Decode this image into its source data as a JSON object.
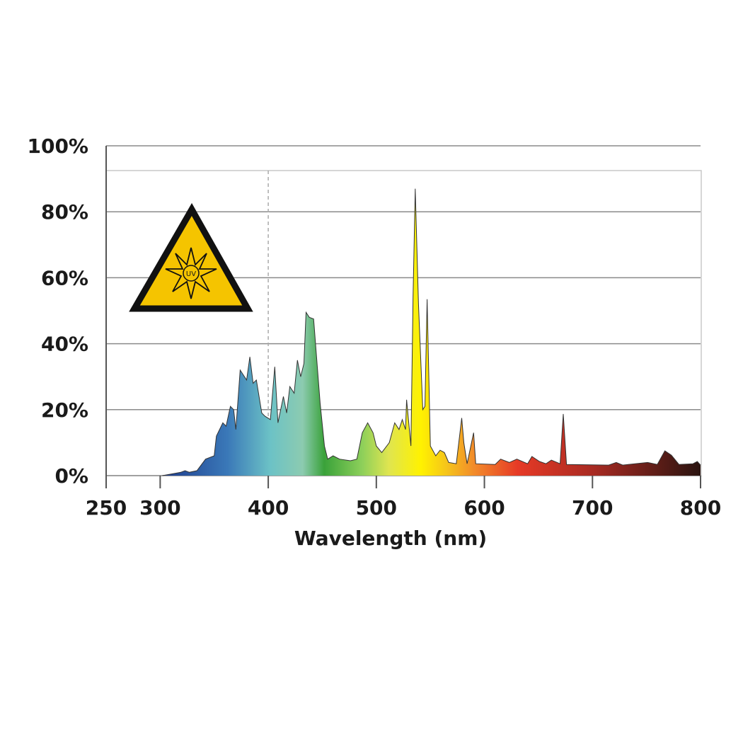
{
  "chart_data": {
    "type": "area",
    "x_label": "Wavelength (nm)",
    "icon_label": "UV",
    "xlim": [
      250,
      800
    ],
    "xticks": [
      250,
      300,
      400,
      500,
      600,
      700,
      800
    ],
    "ylim": [
      0,
      100
    ],
    "yticks": [
      {
        "value": 0,
        "label": "0%"
      },
      {
        "value": 20,
        "label": "20%"
      },
      {
        "value": 40,
        "label": "40%"
      },
      {
        "value": 60,
        "label": "60%"
      },
      {
        "value": 80,
        "label": "80%"
      },
      {
        "value": 100,
        "label": "100%"
      }
    ],
    "grid": true,
    "vline": 400,
    "x": [
      302,
      319,
      323,
      327,
      334,
      342,
      350,
      352,
      358,
      361,
      365,
      368,
      370,
      374,
      380,
      383,
      386,
      389,
      394,
      397,
      402,
      406,
      409,
      414,
      417,
      420,
      424,
      427,
      430,
      433,
      435,
      438,
      442,
      448,
      452,
      455,
      460,
      466,
      476,
      482,
      487,
      492,
      497,
      500,
      505,
      512,
      517,
      521,
      524,
      527,
      528,
      532,
      534,
      536,
      539,
      543,
      545,
      547,
      550,
      555,
      559,
      563,
      567,
      574,
      579,
      581,
      584,
      590,
      592,
      610,
      615,
      623,
      630,
      640,
      644,
      651,
      657,
      662,
      670,
      673,
      676,
      715,
      722,
      728,
      751,
      760,
      767,
      773,
      780,
      793,
      797,
      800
    ],
    "values": [
      0,
      1,
      1.5,
      1,
      1.5,
      5,
      6,
      12,
      16,
      15,
      21,
      20,
      14,
      32,
      29,
      36,
      28,
      29,
      19,
      18,
      17,
      33,
      16,
      24,
      19,
      27,
      25,
      35,
      30,
      34,
      49.5,
      48,
      47.5,
      22,
      9,
      5,
      6,
      5,
      4.5,
      5,
      13,
      16,
      13,
      9,
      7,
      10,
      16,
      14,
      17,
      14,
      23,
      9,
      54,
      87,
      52,
      20,
      21,
      53.5,
      9,
      6,
      7.7,
      7,
      4,
      3.6,
      17.5,
      10,
      3.6,
      13,
      3.6,
      3.4,
      5,
      4,
      5,
      3.6,
      5.8,
      4.3,
      3.6,
      4.7,
      3.6,
      18.7,
      3.4,
      3.2,
      4,
      3.2,
      4,
      3.4,
      7.5,
      6.2,
      3.4,
      3.6,
      4.3,
      3.2
    ]
  }
}
